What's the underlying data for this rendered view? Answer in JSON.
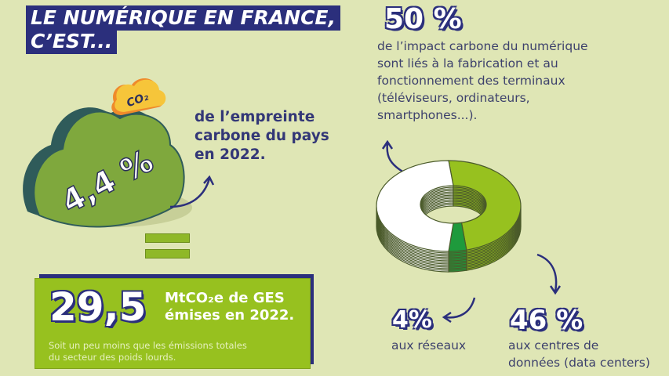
{
  "title": {
    "line1": "LE NUMÉRIQUE EN FRANCE,",
    "line2": "C’EST..."
  },
  "cloud": {
    "value": "4,4 %",
    "badge": "CO₂",
    "caption": [
      "de l’empreinte",
      "carbone du pays",
      "en 2022."
    ]
  },
  "emissions": {
    "value": "29,5",
    "unit_line1": "MtCO₂e de GES",
    "unit_line2": "émises en 2022.",
    "note_line1": "Soit un peu moins que les émissions totales",
    "note_line2": "du secteur des poids lourds."
  },
  "terminals": {
    "value": "50 %",
    "lines": [
      "de l’impact carbone du numérique",
      "sont liés à la fabrication et au",
      "fonctionnement des terminaux",
      "(téléviseurs, ordinateurs,",
      "smartphones...)."
    ]
  },
  "networks": {
    "value": "4%",
    "label": "aux réseaux"
  },
  "datacenters": {
    "value": "46 %",
    "label_line1": "aux centres de",
    "label_line2": "données (data centers)"
  },
  "colors": {
    "background": "#dfe6b5",
    "navy": "#2b2f7c",
    "green": "#97c11f",
    "dark_green": "#1e9a3c",
    "white": "#ffffff"
  },
  "chart_data": {
    "type": "pie",
    "style": "donut",
    "categories": [
      "terminaux",
      "centres de données (data centers)",
      "réseaux"
    ],
    "values": [
      50,
      46,
      4
    ],
    "colors": [
      "#ffffff",
      "#97c11f",
      "#1e9a3c"
    ]
  }
}
